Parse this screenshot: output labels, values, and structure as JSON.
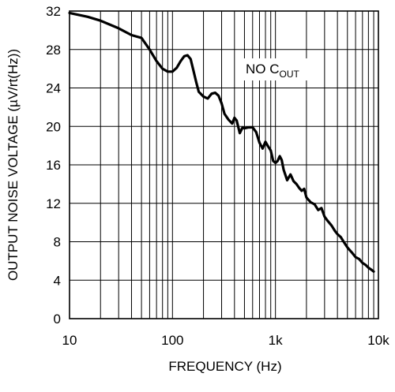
{
  "chart_data": {
    "type": "line",
    "xlabel": "FREQUENCY (Hz)",
    "ylabel": "OUTPUT NOISE VOLTAGE (µV/rt(Hz))",
    "xscale": "log",
    "xlim": [
      10,
      10000
    ],
    "ylim": [
      0,
      32
    ],
    "grid": true,
    "x_tick_labels": [
      "10",
      "100",
      "1k",
      "10k"
    ],
    "y_tick_labels": [
      "0",
      "4",
      "8",
      "12",
      "16",
      "20",
      "24",
      "28",
      "32"
    ],
    "annotation": {
      "main": "NO C",
      "subscript": "OUT"
    },
    "series": [
      {
        "x": [
          10,
          15,
          20,
          30,
          40,
          50,
          60,
          70,
          80,
          90,
          100,
          110,
          120,
          130,
          140,
          150,
          160,
          170,
          180,
          200,
          220,
          240,
          260,
          280,
          300,
          320,
          350,
          380,
          400,
          420,
          450,
          480,
          500,
          550,
          600,
          650,
          700,
          750,
          800,
          850,
          900,
          950,
          1000,
          1050,
          1100,
          1150,
          1200,
          1300,
          1400,
          1500,
          1600,
          1700,
          1800,
          1900,
          2000,
          2200,
          2400,
          2600,
          2800,
          3000,
          3200,
          3500,
          3800,
          4000,
          4300,
          4600,
          5000,
          5500,
          6000,
          6500,
          7000,
          7500,
          8000,
          8500,
          9000
        ],
        "y": [
          31.8,
          31.4,
          31.0,
          30.2,
          29.5,
          29.2,
          28.0,
          26.8,
          26.0,
          25.7,
          25.7,
          26.1,
          26.8,
          27.3,
          27.4,
          27.0,
          25.8,
          24.6,
          23.6,
          23.1,
          22.9,
          23.4,
          23.5,
          23.2,
          22.4,
          21.3,
          20.7,
          20.3,
          20.9,
          20.6,
          19.3,
          19.9,
          19.8,
          19.9,
          19.9,
          19.4,
          18.3,
          17.7,
          18.4,
          17.9,
          17.5,
          16.4,
          16.2,
          16.4,
          16.9,
          16.5,
          15.5,
          14.4,
          15.0,
          14.3,
          14.0,
          13.6,
          13.3,
          13.5,
          12.6,
          12.1,
          11.9,
          11.3,
          11.5,
          10.6,
          10.2,
          9.7,
          9.1,
          8.8,
          8.5,
          8.0,
          7.4,
          6.9,
          6.4,
          6.2,
          5.8,
          5.6,
          5.3,
          5.1,
          4.9
        ]
      }
    ]
  }
}
